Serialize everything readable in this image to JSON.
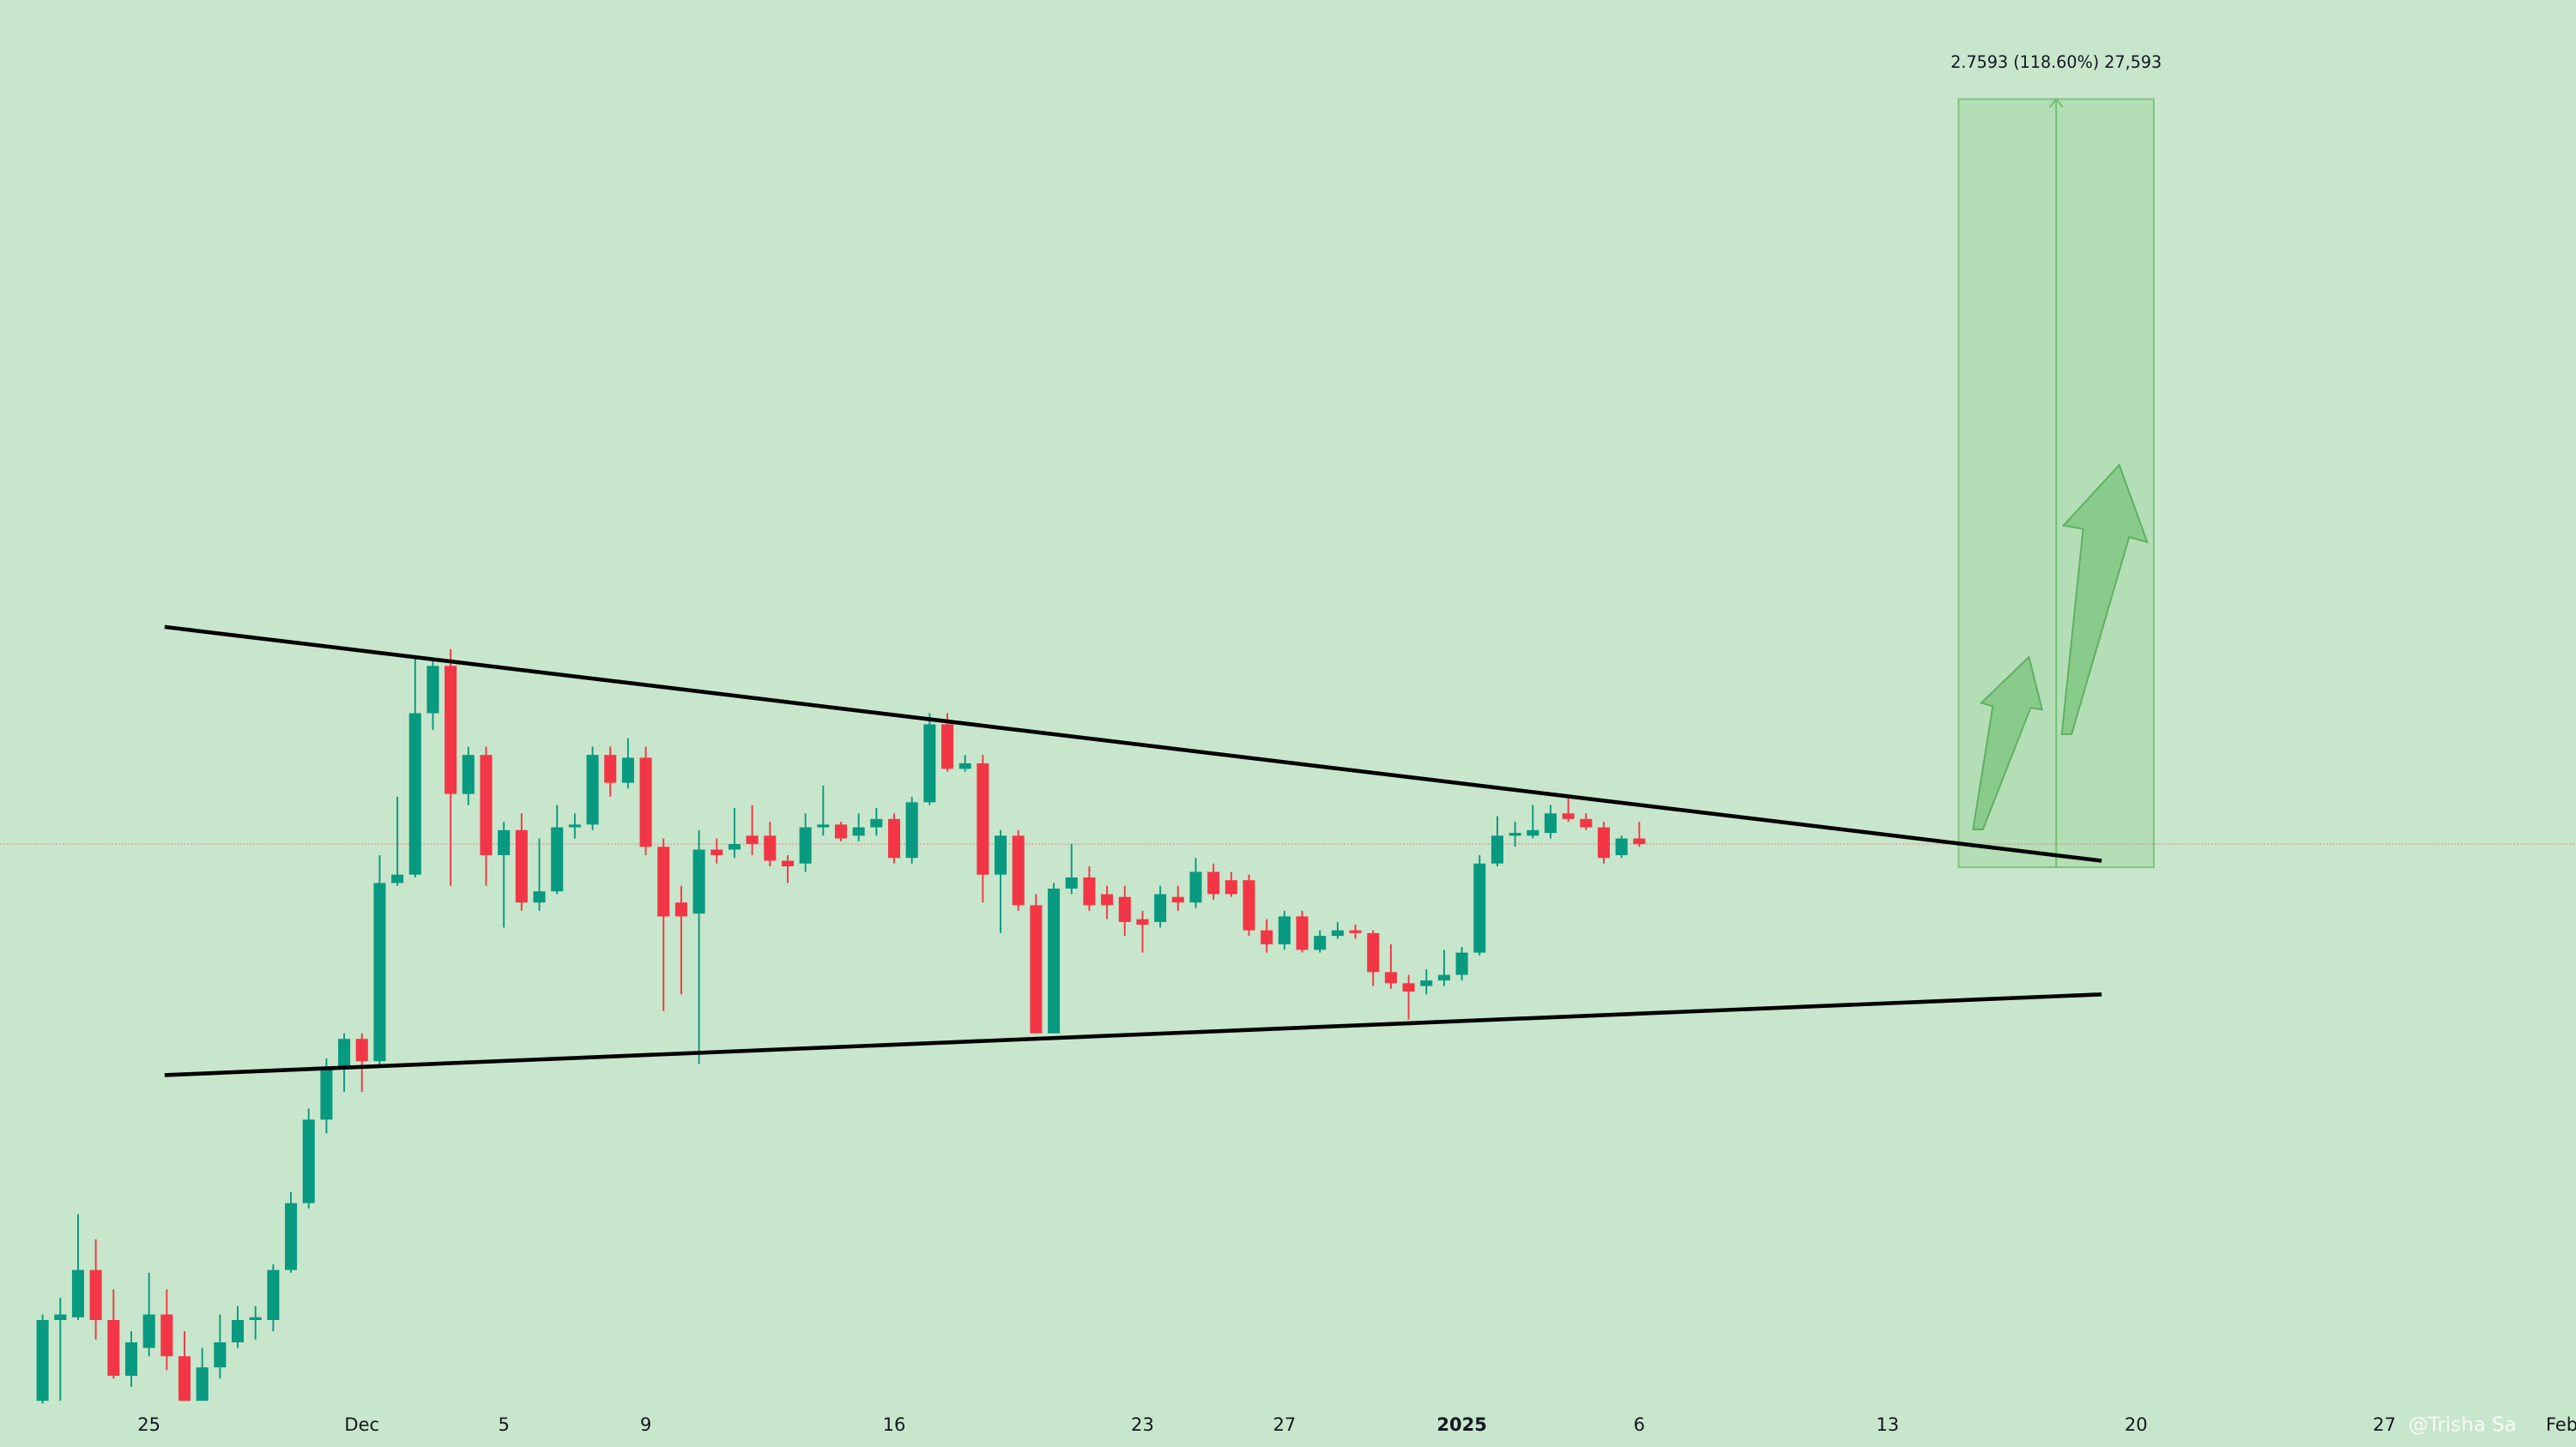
{
  "chart_data": {
    "type": "candlestick",
    "up_color": "#089981",
    "down_color": "#f23645",
    "x": [
      22,
      22.5,
      23,
      23.5,
      24,
      24.5,
      25,
      25.5,
      26,
      26.5,
      27,
      27.5,
      28,
      28.5,
      29,
      29.5,
      30,
      30.5,
      31,
      31.5,
      32,
      32.5,
      33,
      33.5,
      34,
      34.5,
      35,
      35.5,
      36,
      36.5,
      37,
      37.5,
      38,
      38.5,
      39,
      39.5,
      40,
      40.5,
      41,
      41.5,
      42,
      42.5,
      43,
      43.5,
      44,
      44.5,
      45,
      45.5,
      46,
      46.5,
      47,
      47.5,
      48,
      48.5,
      49,
      49.5,
      50,
      50.5,
      51,
      51.5,
      52,
      52.5,
      53,
      53.5,
      54,
      54.5,
      55,
      55.5,
      56,
      56.5,
      57,
      57.5,
      58,
      58.5,
      59,
      59.5,
      60,
      60.5,
      61,
      61.5,
      62,
      62.5,
      63,
      63.5,
      64,
      64.5,
      65,
      65.5,
      66,
      66.5,
      67
    ],
    "open": [
      0.41,
      0.7,
      0.71,
      0.88,
      0.7,
      0.5,
      0.6,
      0.72,
      0.57,
      0.41,
      0.53,
      0.62,
      0.7,
      0.7,
      0.88,
      1.12,
      1.42,
      1.61,
      1.71,
      1.63,
      2.27,
      2.3,
      2.88,
      3.05,
      2.59,
      2.73,
      2.37,
      2.46,
      2.2,
      2.24,
      2.47,
      2.48,
      2.73,
      2.63,
      2.72,
      2.4,
      2.2,
      2.16,
      2.39,
      2.39,
      2.44,
      2.44,
      2.35,
      2.34,
      2.47,
      2.48,
      2.44,
      2.47,
      2.5,
      2.36,
      2.56,
      2.84,
      2.68,
      2.7,
      2.3,
      2.44,
      2.19,
      1.73,
      2.25,
      2.29,
      2.23,
      2.22,
      2.14,
      2.13,
      2.22,
      2.2,
      2.31,
      2.28,
      2.28,
      2.1,
      2.05,
      2.15,
      2.03,
      2.08,
      2.1,
      2.09,
      1.95,
      1.91,
      1.9,
      1.92,
      1.94,
      2.02,
      2.34,
      2.44,
      2.44,
      2.45,
      2.52,
      2.5,
      2.47,
      2.37,
      2.43
    ],
    "high": [
      0.72,
      0.78,
      1.08,
      0.99,
      0.81,
      0.66,
      0.87,
      0.81,
      0.66,
      0.6,
      0.72,
      0.75,
      0.75,
      0.9,
      1.16,
      1.46,
      1.64,
      1.73,
      1.73,
      2.37,
      2.58,
      3.08,
      3.08,
      3.11,
      2.76,
      2.76,
      2.49,
      2.52,
      2.43,
      2.55,
      2.52,
      2.76,
      2.76,
      2.79,
      2.76,
      2.43,
      2.26,
      2.46,
      2.43,
      2.54,
      2.55,
      2.49,
      2.37,
      2.52,
      2.62,
      2.49,
      2.52,
      2.54,
      2.52,
      2.58,
      2.88,
      2.88,
      2.73,
      2.73,
      2.46,
      2.46,
      2.23,
      2.27,
      2.41,
      2.33,
      2.26,
      2.26,
      2.17,
      2.26,
      2.26,
      2.36,
      2.34,
      2.31,
      2.3,
      2.14,
      2.17,
      2.17,
      2.1,
      2.13,
      2.12,
      2.1,
      2.05,
      1.94,
      1.96,
      2.03,
      2.04,
      2.37,
      2.51,
      2.49,
      2.55,
      2.55,
      2.58,
      2.52,
      2.49,
      2.44,
      2.49
    ],
    "low": [
      0.4,
      0.41,
      0.7,
      0.63,
      0.49,
      0.46,
      0.57,
      0.52,
      0.41,
      0.41,
      0.49,
      0.6,
      0.63,
      0.66,
      0.87,
      1.1,
      1.37,
      1.52,
      1.52,
      1.61,
      2.26,
      2.29,
      2.82,
      2.26,
      2.55,
      2.26,
      2.11,
      2.17,
      2.17,
      2.23,
      2.43,
      2.46,
      2.58,
      2.61,
      2.37,
      1.81,
      1.87,
      1.62,
      2.34,
      2.36,
      2.37,
      2.33,
      2.27,
      2.31,
      2.44,
      2.42,
      2.42,
      2.44,
      2.34,
      2.34,
      2.55,
      2.67,
      2.67,
      2.2,
      2.09,
      2.17,
      1.73,
      1.73,
      2.23,
      2.17,
      2.14,
      2.08,
      2.02,
      2.11,
      2.17,
      2.18,
      2.21,
      2.22,
      2.08,
      2.02,
      2.03,
      2.02,
      2.02,
      2.07,
      2.07,
      1.9,
      1.89,
      1.78,
      1.87,
      1.9,
      1.92,
      2.01,
      2.33,
      2.4,
      2.43,
      2.43,
      2.49,
      2.46,
      2.34,
      2.36,
      2.4
    ],
    "close": [
      0.7,
      0.72,
      0.88,
      0.7,
      0.5,
      0.62,
      0.72,
      0.57,
      0.41,
      0.53,
      0.62,
      0.7,
      0.71,
      0.88,
      1.12,
      1.42,
      1.61,
      1.71,
      1.63,
      2.27,
      2.3,
      2.88,
      3.05,
      2.59,
      2.73,
      2.37,
      2.46,
      2.2,
      2.24,
      2.47,
      2.48,
      2.73,
      2.63,
      2.72,
      2.4,
      2.15,
      2.15,
      2.39,
      2.37,
      2.41,
      2.41,
      2.35,
      2.33,
      2.47,
      2.48,
      2.43,
      2.47,
      2.5,
      2.36,
      2.56,
      2.84,
      2.68,
      2.7,
      2.3,
      2.44,
      2.19,
      1.73,
      2.25,
      2.29,
      2.19,
      2.19,
      2.13,
      2.12,
      2.23,
      2.2,
      2.31,
      2.23,
      2.23,
      2.1,
      2.05,
      2.15,
      2.03,
      2.08,
      2.1,
      2.09,
      1.95,
      1.91,
      1.88,
      1.92,
      1.94,
      2.02,
      2.34,
      2.44,
      2.45,
      2.46,
      2.52,
      2.5,
      2.47,
      2.36,
      2.43,
      2.41
    ],
    "xlim": [
      20.8,
      93.4
    ],
    "ylim": [
      0.244,
      5.442
    ],
    "xticks": [
      {
        "value": 25,
        "label": "25"
      },
      {
        "value": 31,
        "label": "Dec"
      },
      {
        "value": 35,
        "label": "5"
      },
      {
        "value": 39,
        "label": "9"
      },
      {
        "value": 46,
        "label": "16"
      },
      {
        "value": 53,
        "label": "23"
      },
      {
        "value": 57,
        "label": "27"
      },
      {
        "value": 62,
        "label": "2025"
      },
      {
        "value": 67,
        "label": "6"
      },
      {
        "value": 74,
        "label": "13"
      },
      {
        "value": 81,
        "label": "20"
      },
      {
        "value": 88,
        "label": "27"
      },
      {
        "value": 93,
        "label": "Feb"
      }
    ],
    "trendlines": [
      {
        "x": [
          25.44,
          80.03
        ],
        "y": [
          3.19,
          2.35
        ]
      },
      {
        "x": [
          25.44,
          80.03
        ],
        "y": [
          1.58,
          1.87
        ]
      }
    ],
    "measure": {
      "x": [
        76.0,
        81.5
      ],
      "from": 2.3266,
      "to": 5.0859,
      "label": "2.7593 (118.60%) 27,593"
    },
    "watermark": "@Trisha Sa"
  }
}
